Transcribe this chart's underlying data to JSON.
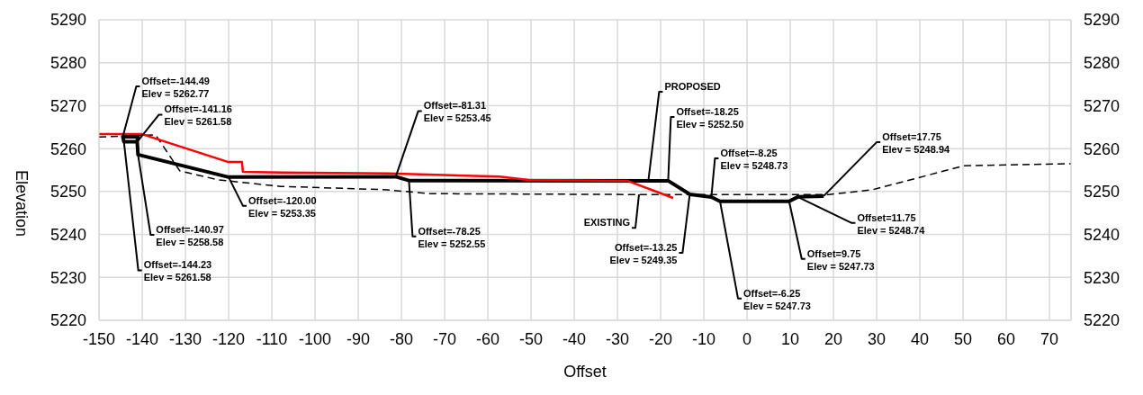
{
  "chart_data": {
    "type": "line",
    "xlabel": "Offset",
    "ylabel": "Elevation",
    "xlim": [
      -150,
      75
    ],
    "xticks": [
      -150,
      -140,
      -130,
      -120,
      -110,
      -100,
      -90,
      -80,
      -70,
      -60,
      -50,
      -40,
      -30,
      -20,
      -10,
      0,
      10,
      20,
      30,
      40,
      50,
      60,
      70
    ],
    "ylim": [
      5220,
      5290
    ],
    "yticks": [
      5220,
      5230,
      5240,
      5250,
      5260,
      5270,
      5280,
      5290
    ],
    "y2lim": [
      5220,
      5290
    ],
    "y2ticks": [
      5220,
      5230,
      5240,
      5250,
      5260,
      5270,
      5280,
      5290
    ],
    "grid": true,
    "legend": false,
    "marker": "none",
    "series": [
      {
        "name": "PROPOSED",
        "color": "#000000",
        "line_style": "solid",
        "x": [
          -141.16,
          -144.23,
          -144.49,
          -141.0,
          -141.16,
          -140.97,
          -120,
          -81.31,
          -78.25,
          -18.25,
          -13.25,
          -8.25,
          -6.25,
          9.75,
          11.75,
          17.75
        ],
        "values": [
          5261.58,
          5261.58,
          5262.77,
          5262.77,
          5261.58,
          5258.58,
          5253.35,
          5253.45,
          5252.55,
          5252.5,
          5249.35,
          5248.73,
          5247.73,
          5247.73,
          5248.74,
          5248.94
        ]
      },
      {
        "name": "EXISTING",
        "color": "#000000",
        "line_style": "dashed",
        "x": [
          -150,
          -136.9,
          -131.3,
          -122.3,
          -108,
          -83.3,
          -73.5,
          -25,
          19,
          29,
          50.2,
          75
        ],
        "values": [
          5262.7,
          5263.2,
          5254.8,
          5252.7,
          5251.2,
          5250.4,
          5249.5,
          5249.3,
          5249.3,
          5250.4,
          5256.0,
          5256.5
        ]
      },
      {
        "color": "#ff0000",
        "line_style": "solid",
        "x": [
          -150,
          -140.2,
          -120.2,
          -116.9,
          -116.7,
          -107.7,
          -83,
          -57.3,
          -50.6,
          -27.7,
          -17.1
        ],
        "values": [
          5263.4,
          5263.4,
          5256.9,
          5256.9,
          5254.6,
          5254.4,
          5254.2,
          5253.5,
          5252.7,
          5252.5,
          5248.5
        ]
      }
    ],
    "annotations": [
      {
        "text": "Offset=-144.49\nElev = 5262.77",
        "x": -144.49,
        "y": 5262.77
      },
      {
        "text": "Offset=-141.16\nElev = 5261.58",
        "x": -141.16,
        "y": 5261.58
      },
      {
        "text": "Offset=-140.97\nElev = 5258.58",
        "x": -140.97,
        "y": 5258.58
      },
      {
        "text": "Offset=-144.23\nElev = 5261.58",
        "x": -144.23,
        "y": 5261.58
      },
      {
        "text": "Offset=-120.00\nElev = 5253.35",
        "x": -120,
        "y": 5253.35
      },
      {
        "text": "Offset=-81.31\nElev = 5253.45",
        "x": -81.31,
        "y": 5253.45
      },
      {
        "text": "Offset=-78.25\nElev = 5252.55",
        "x": -78.25,
        "y": 5252.55
      },
      {
        "text": "Offset=-18.25\nElev = 5252.50",
        "x": -18.25,
        "y": 5252.5
      },
      {
        "text": "Offset=-13.25\nElev = 5249.35",
        "x": -13.25,
        "y": 5249.35
      },
      {
        "text": "Offset=-8.25\nElev = 5248.73",
        "x": -8.25,
        "y": 5248.73
      },
      {
        "text": "Offset=-6.25\nElev = 5247.73",
        "x": -6.25,
        "y": 5247.73
      },
      {
        "text": "Offset=9.75\nElev = 5247.73",
        "x": 9.75,
        "y": 5247.73
      },
      {
        "text": "Offset=11.75\nElev = 5248.74",
        "x": 11.75,
        "y": 5248.74
      },
      {
        "text": "Offset=17.75\nElev = 5248.94",
        "x": 17.75,
        "y": 5248.94
      }
    ]
  }
}
